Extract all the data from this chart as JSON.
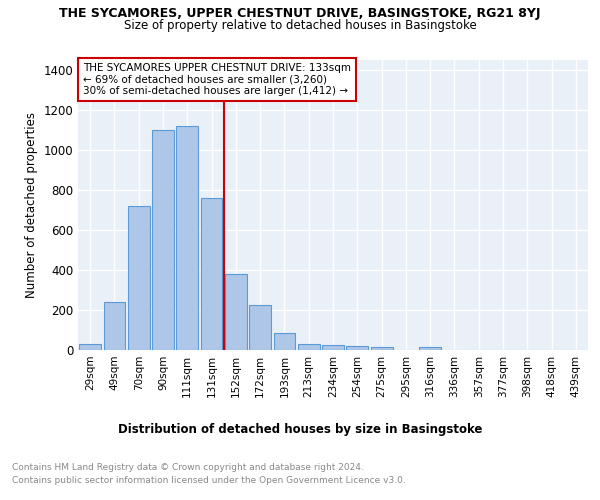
{
  "title_line1": "THE SYCAMORES, UPPER CHESTNUT DRIVE, BASINGSTOKE, RG21 8YJ",
  "title_line2": "Size of property relative to detached houses in Basingstoke",
  "xlabel": "Distribution of detached houses by size in Basingstoke",
  "ylabel": "Number of detached properties",
  "bar_labels": [
    "29sqm",
    "49sqm",
    "70sqm",
    "90sqm",
    "111sqm",
    "131sqm",
    "152sqm",
    "172sqm",
    "193sqm",
    "213sqm",
    "234sqm",
    "254sqm",
    "275sqm",
    "295sqm",
    "316sqm",
    "336sqm",
    "357sqm",
    "377sqm",
    "398sqm",
    "418sqm",
    "439sqm"
  ],
  "bar_values": [
    30,
    240,
    720,
    1100,
    1120,
    760,
    380,
    225,
    85,
    30,
    25,
    20,
    15,
    0,
    15,
    0,
    0,
    0,
    0,
    0,
    0
  ],
  "bar_color": "#aec6e8",
  "bar_edge_color": "#5b9bd5",
  "vline_x_index": 5.5,
  "vline_color": "#cc0000",
  "annotation_text": "THE SYCAMORES UPPER CHESTNUT DRIVE: 133sqm\n← 69% of detached houses are smaller (3,260)\n30% of semi-detached houses are larger (1,412) →",
  "annotation_box_edge_color": "#cc0000",
  "ylim": [
    0,
    1450
  ],
  "yticks": [
    0,
    200,
    400,
    600,
    800,
    1000,
    1200,
    1400
  ],
  "footer_line1": "Contains HM Land Registry data © Crown copyright and database right 2024.",
  "footer_line2": "Contains public sector information licensed under the Open Government Licence v3.0.",
  "plot_bg_color": "#eaf0f8"
}
